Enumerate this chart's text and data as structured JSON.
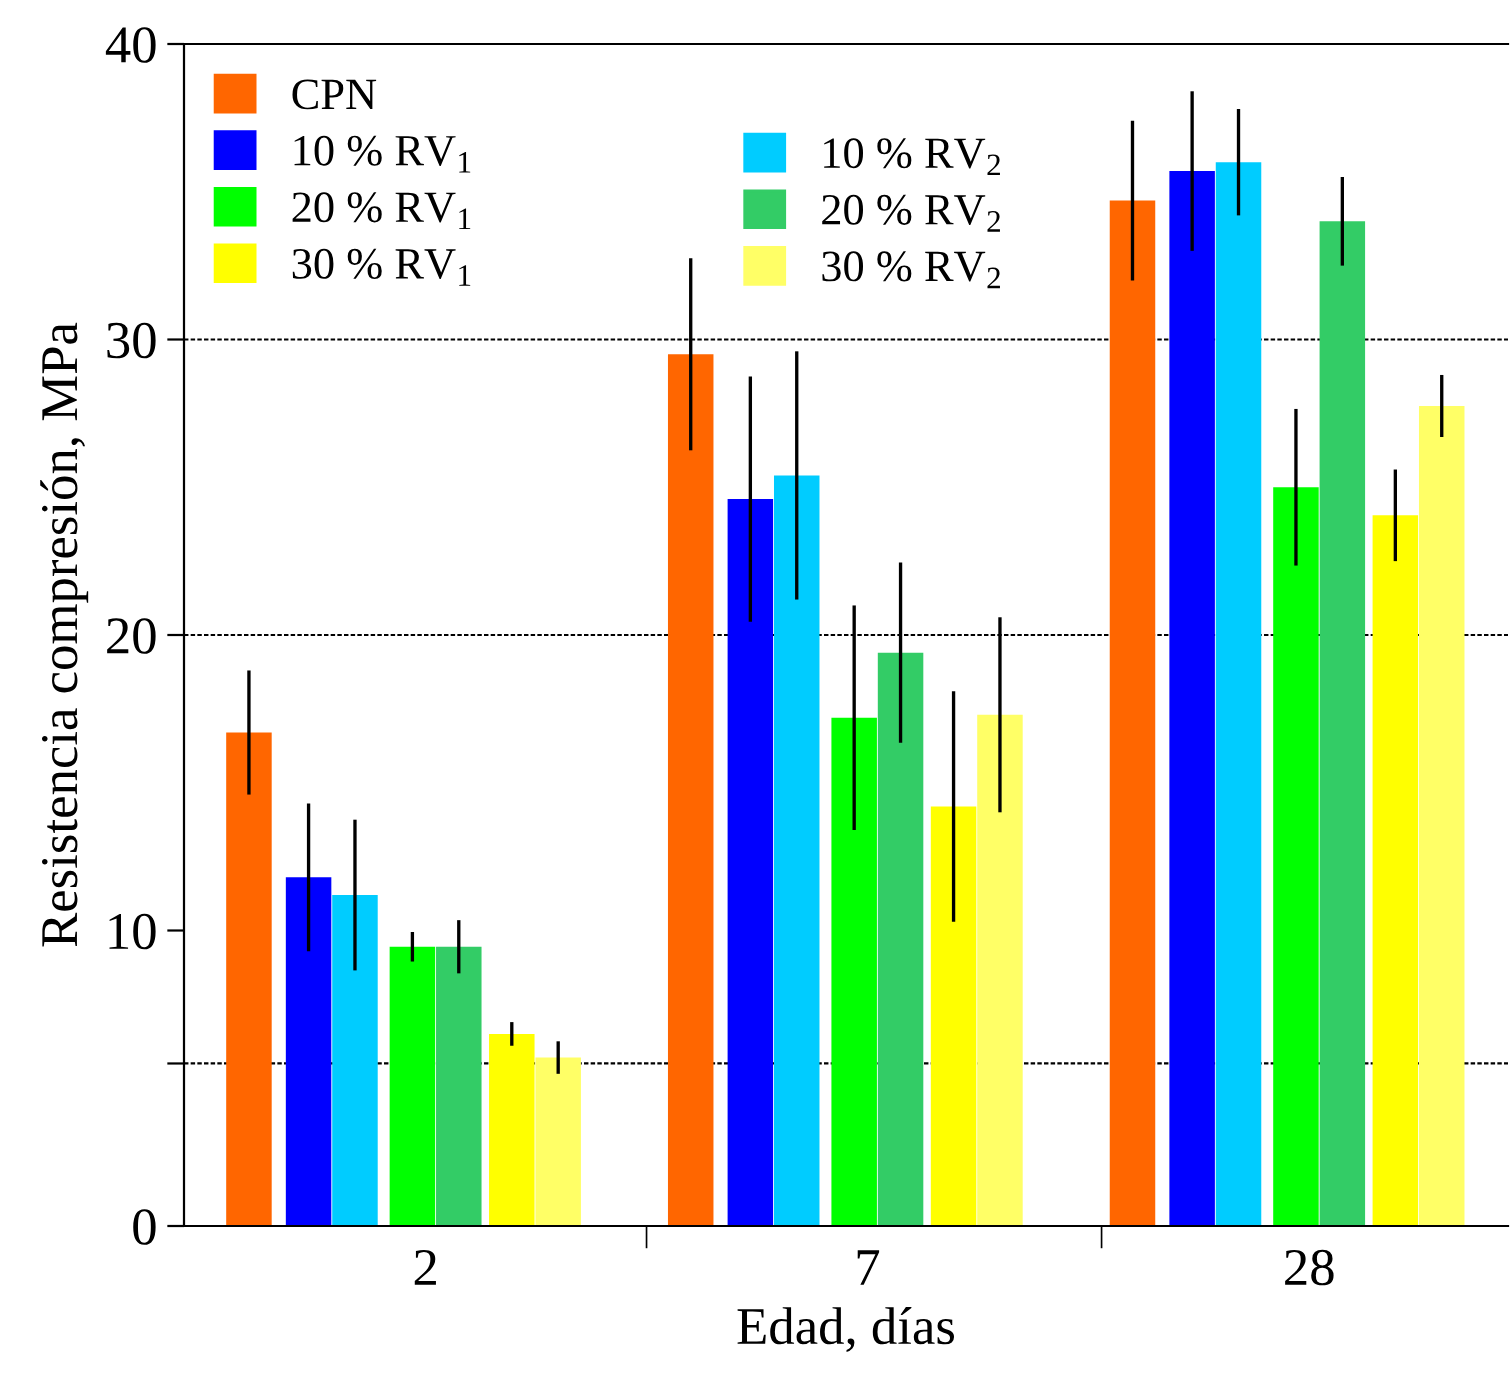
{
  "chart_data": {
    "type": "bar",
    "xlabel": "Edad, días",
    "ylabel": "Resistencia compresión, MPa",
    "categories": [
      "2",
      "7",
      "28"
    ],
    "series": [
      {
        "name": "CPN",
        "color": "#ff6600",
        "values": [
          16.7,
          29.5,
          34.7
        ],
        "errors": [
          2.1,
          3.25,
          2.7
        ]
      },
      {
        "name": "10 % RV$_{1}$",
        "color": "#0000ff",
        "values": [
          11.8,
          24.6,
          35.7
        ],
        "errors": [
          2.5,
          4.15,
          2.7
        ]
      },
      {
        "name": "10 % RV$_{2}$",
        "color": "#00ccff",
        "values": [
          11.2,
          25.4,
          36.0
        ],
        "errors": [
          2.55,
          4.2,
          1.8
        ]
      },
      {
        "name": "20 % RV$_{1}$",
        "color": "#00ff00",
        "values": [
          9.45,
          17.2,
          25.0
        ],
        "errors": [
          0.5,
          3.8,
          2.65
        ]
      },
      {
        "name": "20 % RV$_{2}$",
        "color": "#33cc66",
        "values": [
          9.45,
          19.4,
          34.0
        ],
        "errors": [
          0.9,
          3.05,
          1.5
        ]
      },
      {
        "name": "30 % RV$_{1}$",
        "color": "#ffff00",
        "values": [
          6.5,
          14.2,
          24.05
        ],
        "errors": [
          0.4,
          3.9,
          1.55
        ]
      },
      {
        "name": "30 % RV$_{2}$",
        "color": "#ffff66",
        "values": [
          5.7,
          17.3,
          27.75
        ],
        "errors": [
          0.55,
          3.3,
          1.05
        ]
      }
    ],
    "ylim": [
      0,
      40
    ],
    "yticks": [
      0,
      {
        "value": 5.5,
        "label": null
      },
      10,
      20,
      30,
      40
    ],
    "ref_lines": [
      {
        "axis": "y",
        "value": 5.5,
        "color": "#000000",
        "line_style": "dashed"
      },
      {
        "axis": "y",
        "value": 20,
        "color": "#000000",
        "line_style": "dashed"
      },
      {
        "axis": "y",
        "value": 30,
        "color": "#000000",
        "line_style": "dashed"
      }
    ],
    "legend": "top left"
  }
}
